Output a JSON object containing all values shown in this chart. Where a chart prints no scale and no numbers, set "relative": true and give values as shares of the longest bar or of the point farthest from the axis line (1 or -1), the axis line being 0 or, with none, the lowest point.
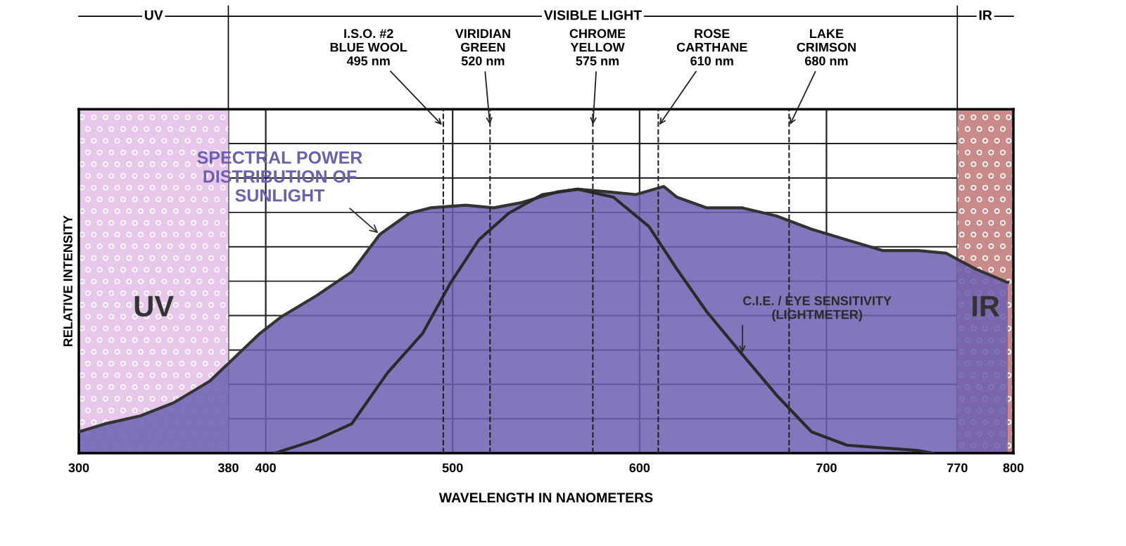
{
  "chart_data": {
    "type": "area",
    "relative": true,
    "xlabel": "WAVELENGTH IN NANOMETERS",
    "ylabel": "RELATIVE INTENSITY",
    "xlim": [
      300,
      800
    ],
    "xticks": [
      300,
      380,
      400,
      500,
      600,
      700,
      770,
      800
    ],
    "tick_labels": "x",
    "grid": true,
    "legend": false,
    "series": [
      {
        "name": "SPECTRAL POWER\nDISTRIBUTION OF\nSUNLIGHT",
        "color": "#6b5fb0",
        "x": [
          300,
          314,
          333,
          351,
          370,
          382,
          397,
          408,
          427,
          446,
          461,
          477,
          488,
          507,
          522,
          537,
          556,
          567,
          583,
          598,
          613,
          620,
          636,
          655,
          673,
          692,
          711,
          730,
          749,
          764,
          780,
          797
        ],
        "values": [
          0.08,
          0.11,
          0.14,
          0.19,
          0.27,
          0.35,
          0.45,
          0.51,
          0.59,
          0.68,
          0.82,
          0.9,
          0.92,
          0.93,
          0.92,
          0.94,
          0.98,
          0.99,
          0.98,
          0.97,
          1.0,
          0.96,
          0.92,
          0.92,
          0.89,
          0.84,
          0.8,
          0.76,
          0.76,
          0.75,
          0.69,
          0.64
        ]
      },
      {
        "name": "C.I.E. / EYE SENSITIVITY\n(LIGHTMETER)",
        "type": "line",
        "color": "#2a2a2a",
        "x": [
          405,
          427,
          446,
          465,
          484,
          499,
          514,
          530,
          548,
          567,
          586,
          605,
          620,
          636,
          655,
          673,
          692,
          711,
          749,
          757
        ],
        "values": [
          0,
          0.05,
          0.11,
          0.3,
          0.45,
          0.64,
          0.8,
          0.9,
          0.97,
          0.99,
          0.96,
          0.85,
          0.69,
          0.53,
          0.37,
          0.22,
          0.08,
          0.03,
          0.01,
          0
        ]
      }
    ],
    "ref_lines": [
      {
        "axis": "x",
        "value": 495,
        "label": "I.S.O. #2\nBLUE WOOL\n495 nm",
        "line_style": "dashed",
        "color": "#222222"
      },
      {
        "axis": "x",
        "value": 520,
        "label": "VIRIDIAN\nGREEN\n520 nm",
        "line_style": "dashed",
        "color": "#222222"
      },
      {
        "axis": "x",
        "value": 575,
        "label": "CHROME\nYELLOW\n575 nm",
        "line_style": "dashed",
        "color": "#222222"
      },
      {
        "axis": "x",
        "value": 610,
        "label": "ROSE\nCARTHANE\n610 nm",
        "line_style": "dashed",
        "color": "#222222"
      },
      {
        "axis": "x",
        "value": 680,
        "label": "LAKE\nCRIMSON\n680 nm",
        "line_style": "dashed",
        "color": "#222222"
      }
    ],
    "bands": [
      {
        "axis": "x",
        "from": 300,
        "to": 380,
        "label": "UV",
        "color": "#e8c8ea"
      },
      {
        "axis": "x",
        "from": 770,
        "to": 800,
        "label": "IR",
        "color": "#c98a8a"
      }
    ],
    "annotations": [
      "UV",
      "VISIBLE LIGHT",
      "IR"
    ]
  }
}
